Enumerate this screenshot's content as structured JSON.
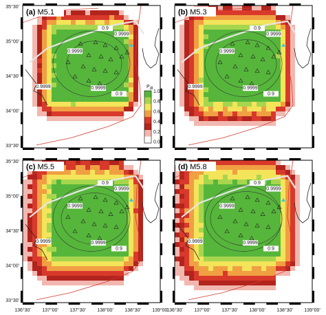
{
  "panels": [
    {
      "label": "(a)",
      "magnitude": "M5.1"
    },
    {
      "label": "(b)",
      "magnitude": "M5.3"
    },
    {
      "label": "(c)",
      "magnitude": "M5.5"
    },
    {
      "label": "(d)",
      "magnitude": "M5.8"
    }
  ],
  "lat_ticks": [
    "35°30'",
    "35°00'",
    "34°30'",
    "34°00'",
    "33°30'"
  ],
  "lon_ticks": [
    "136°30'",
    "137°00'",
    "137°30'",
    "138°00'",
    "138°30'",
    "139°00'"
  ],
  "colorbar": {
    "title_main": "P",
    "title_sub": "dl",
    "ticks": [
      "1.0",
      "0.8",
      "0.6",
      "0.4",
      "0.2",
      "0.0"
    ]
  },
  "contour_labels": [
    "0.9",
    "0.9999"
  ],
  "colors": {
    "green": "#56b63b",
    "light_green": "#a7d64e",
    "yellow": "#f3e45a",
    "orange": "#f0a042",
    "red": "#d8392b",
    "dark_red": "#b2241d",
    "pink": "#f2b8b0"
  }
}
